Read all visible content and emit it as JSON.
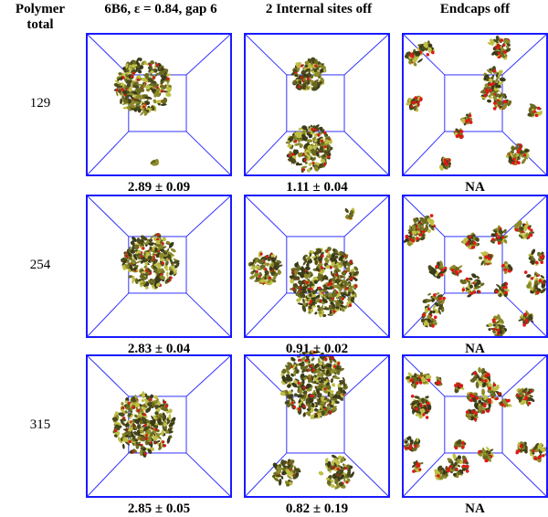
{
  "header": {
    "corner": "Polymer total",
    "columns": [
      "6B6, ε = 0.84, gap 6",
      "2 Internal sites off",
      "Endcaps off"
    ]
  },
  "rows": [
    {
      "label": "129",
      "values": [
        "2.89 ± 0.09",
        "1.11 ± 0.04",
        "NA"
      ]
    },
    {
      "label": "254",
      "values": [
        "2.83 ± 0.04",
        "0.91 ± 0.02",
        "NA"
      ]
    },
    {
      "label": "315",
      "values": [
        "2.85 ± 0.05",
        "0.82 ± 0.19",
        "NA"
      ]
    }
  ]
}
